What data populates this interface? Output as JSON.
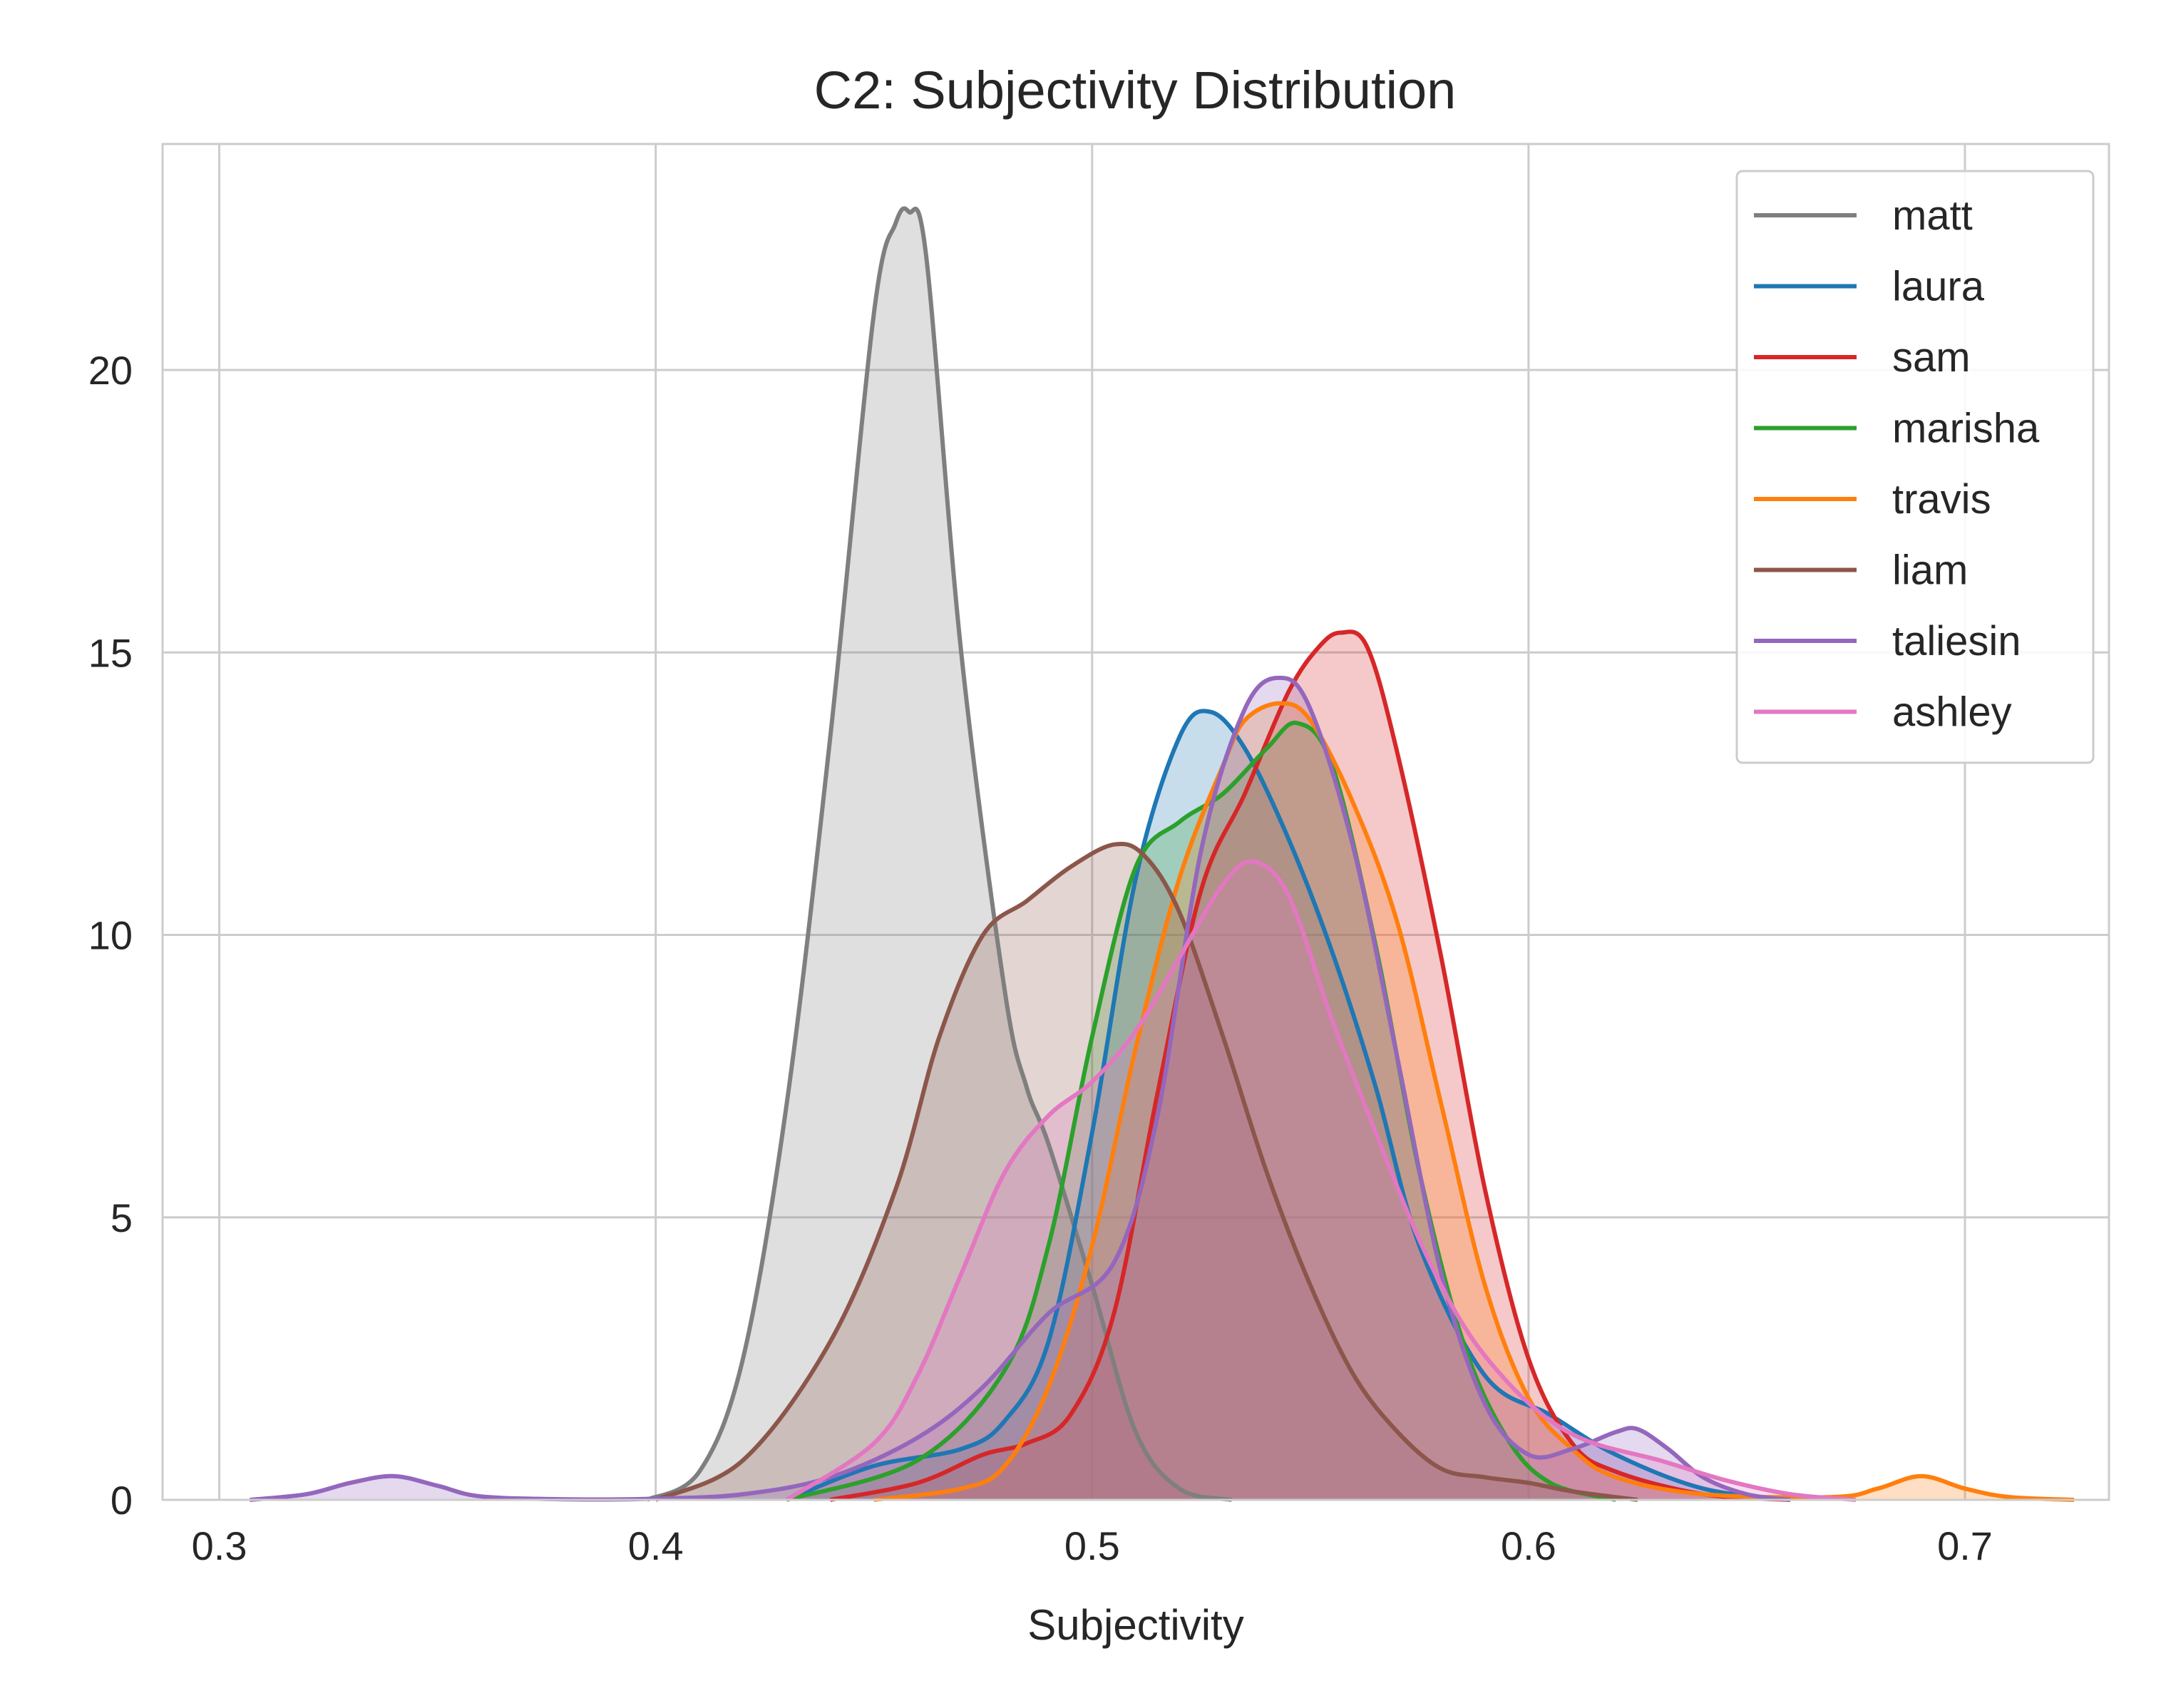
{
  "chart_data": {
    "type": "area",
    "title": "C2: Subjectivity Distribution",
    "xlabel": "Subjectivity",
    "ylabel": "",
    "xlim": [
      0.287,
      0.733
    ],
    "ylim": [
      0,
      24
    ],
    "xticks": [
      0.3,
      0.4,
      0.5,
      0.6,
      0.7
    ],
    "xtick_labels": [
      "0.3",
      "0.4",
      "0.5",
      "0.6",
      "0.7"
    ],
    "yticks": [
      0,
      5,
      10,
      15,
      20
    ],
    "ytick_labels": [
      "0",
      "5",
      "10",
      "15",
      "20"
    ],
    "grid": true,
    "legend_position": "top-right",
    "series": [
      {
        "name": "matt",
        "color": "#7f7f7f",
        "x": [
          0.398,
          0.41,
          0.42,
          0.43,
          0.44,
          0.45,
          0.455,
          0.458,
          0.462,
          0.47,
          0.48,
          0.485,
          0.49,
          0.5,
          0.51,
          0.52,
          0.532
        ],
        "y": [
          0,
          0.5,
          2.5,
          7,
          13.5,
          21,
          22.6,
          22.8,
          22,
          15,
          9,
          7.3,
          6.3,
          3.8,
          1.2,
          0.2,
          0
        ]
      },
      {
        "name": "laura",
        "color": "#1f77b4",
        "x": [
          0.43,
          0.45,
          0.47,
          0.48,
          0.49,
          0.5,
          0.51,
          0.52,
          0.527,
          0.535,
          0.545,
          0.555,
          0.565,
          0.575,
          0.59,
          0.605,
          0.62,
          0.64,
          0.66
        ],
        "y": [
          0,
          0.6,
          0.9,
          1.4,
          2.8,
          6.5,
          11,
          13.5,
          13.95,
          13.3,
          11.7,
          9.7,
          7.3,
          4.5,
          2.2,
          1.5,
          0.8,
          0.2,
          0
        ]
      },
      {
        "name": "sam",
        "color": "#d62728",
        "x": [
          0.44,
          0.46,
          0.475,
          0.485,
          0.495,
          0.505,
          0.515,
          0.525,
          0.535,
          0.545,
          0.552,
          0.557,
          0.563,
          0.57,
          0.58,
          0.59,
          0.6,
          0.61,
          0.62,
          0.64,
          0.66
        ],
        "y": [
          0,
          0.3,
          0.8,
          1.0,
          1.5,
          3.3,
          7.2,
          10.8,
          12.5,
          14.3,
          15.1,
          15.35,
          15.1,
          13.2,
          9.6,
          5.5,
          2.5,
          1.0,
          0.5,
          0.1,
          0
        ]
      },
      {
        "name": "marisha",
        "color": "#2ca02c",
        "x": [
          0.43,
          0.46,
          0.48,
          0.49,
          0.5,
          0.51,
          0.52,
          0.53,
          0.54,
          0.547,
          0.555,
          0.565,
          0.575,
          0.585,
          0.595,
          0.605,
          0.62
        ],
        "y": [
          0,
          0.7,
          2.3,
          4.5,
          8.2,
          11.2,
          12.0,
          12.5,
          13.3,
          13.75,
          13.0,
          9.8,
          5.8,
          2.8,
          1.1,
          0.3,
          0
        ]
      },
      {
        "name": "travis",
        "color": "#ff7f0e",
        "x": [
          0.45,
          0.47,
          0.48,
          0.49,
          0.5,
          0.51,
          0.52,
          0.53,
          0.535,
          0.543,
          0.55,
          0.56,
          0.57,
          0.58,
          0.59,
          0.6,
          0.61,
          0.62,
          0.64,
          0.67,
          0.68,
          0.69,
          0.7,
          0.71,
          0.725
        ],
        "y": [
          0,
          0.2,
          0.6,
          2.0,
          4.5,
          8.0,
          11.0,
          13.0,
          13.8,
          14.1,
          13.8,
          12.3,
          10.2,
          7.0,
          3.8,
          1.8,
          0.9,
          0.4,
          0.1,
          0.05,
          0.2,
          0.42,
          0.2,
          0.05,
          0
        ]
      },
      {
        "name": "liam",
        "color": "#8c564b",
        "x": [
          0.4,
          0.42,
          0.44,
          0.455,
          0.465,
          0.475,
          0.485,
          0.495,
          0.505,
          0.512,
          0.52,
          0.53,
          0.54,
          0.55,
          0.56,
          0.57,
          0.58,
          0.59,
          0.6,
          0.61,
          0.625
        ],
        "y": [
          0,
          0.7,
          2.8,
          5.5,
          8.2,
          10.0,
          10.6,
          11.2,
          11.6,
          11.4,
          10.4,
          8.2,
          5.8,
          3.8,
          2.2,
          1.2,
          0.55,
          0.4,
          0.3,
          0.15,
          0
        ]
      },
      {
        "name": "taliesin",
        "color": "#9467bd",
        "x": [
          0.307,
          0.32,
          0.33,
          0.34,
          0.35,
          0.36,
          0.38,
          0.4,
          0.42,
          0.44,
          0.46,
          0.475,
          0.49,
          0.505,
          0.515,
          0.525,
          0.535,
          0.543,
          0.55,
          0.56,
          0.57,
          0.58,
          0.59,
          0.6,
          0.61,
          0.62,
          0.625,
          0.632,
          0.64,
          0.65,
          0.66
        ],
        "y": [
          0,
          0.1,
          0.3,
          0.42,
          0.25,
          0.06,
          0.01,
          0.02,
          0.1,
          0.4,
          1.1,
          2.0,
          3.3,
          4.2,
          6.8,
          11.5,
          14.0,
          14.55,
          14.0,
          11.5,
          7.8,
          4.0,
          1.7,
          0.8,
          0.9,
          1.2,
          1.25,
          0.9,
          0.4,
          0.1,
          0
        ]
      },
      {
        "name": "ashley",
        "color": "#e377c2",
        "x": [
          0.43,
          0.45,
          0.46,
          0.47,
          0.48,
          0.49,
          0.5,
          0.51,
          0.52,
          0.53,
          0.537,
          0.545,
          0.555,
          0.565,
          0.575,
          0.585,
          0.595,
          0.605,
          0.615,
          0.63,
          0.645,
          0.66,
          0.675
        ],
        "y": [
          0,
          1.0,
          2.2,
          4.0,
          5.8,
          6.8,
          7.4,
          8.3,
          9.6,
          10.9,
          11.3,
          10.7,
          8.5,
          6.5,
          4.6,
          3.1,
          2.1,
          1.4,
          1.0,
          0.7,
          0.35,
          0.1,
          0
        ]
      }
    ]
  }
}
